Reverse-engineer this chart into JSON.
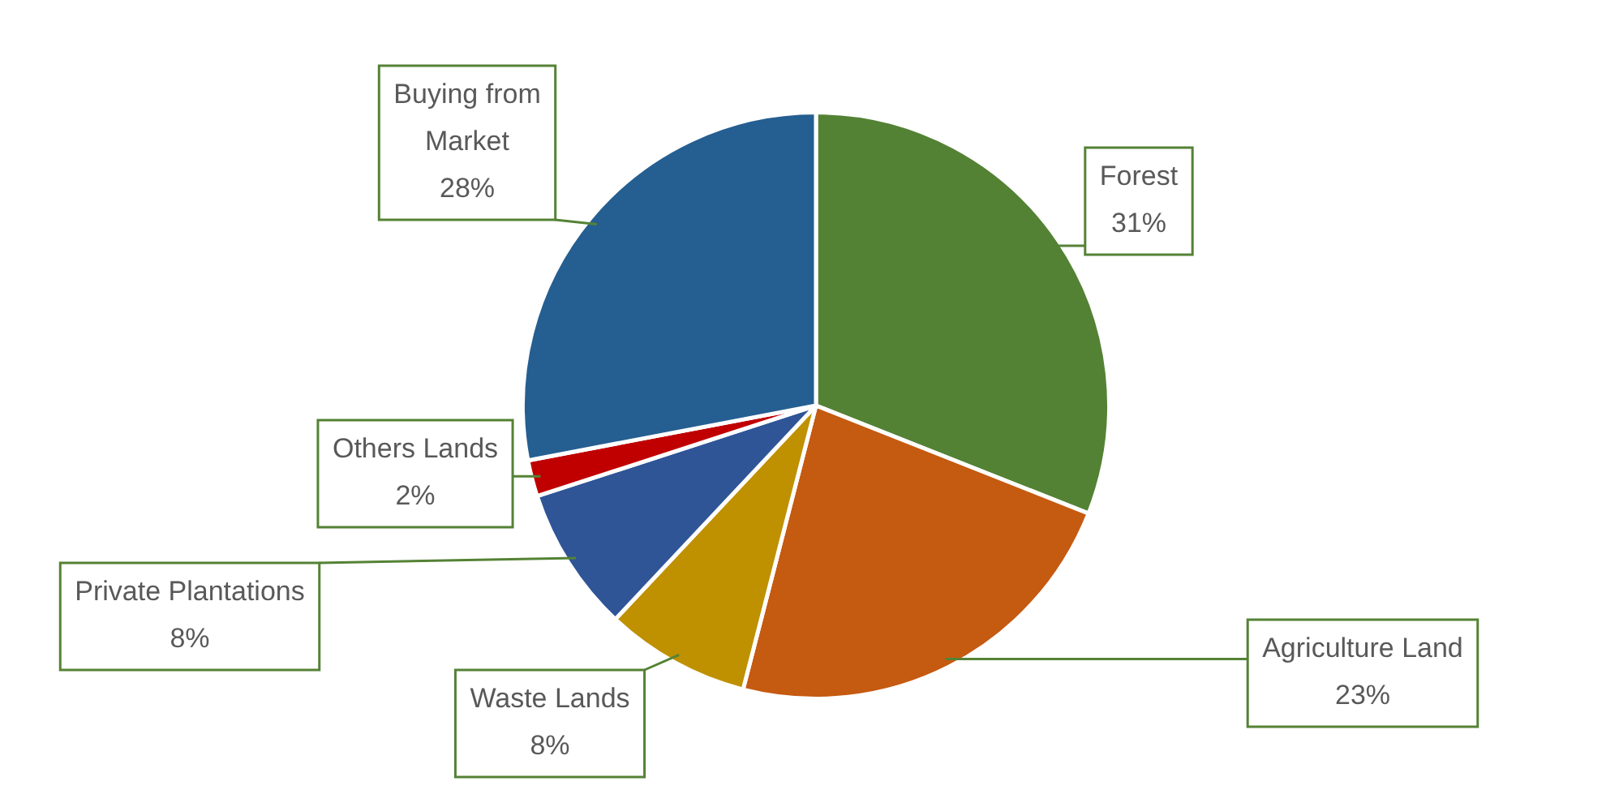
{
  "chart_data": {
    "type": "pie",
    "categories": [
      "Forest",
      "Agriculture Land",
      "Waste Lands",
      "Private Plantations",
      "Others Lands",
      "Buying from Market"
    ],
    "values": [
      31,
      23,
      8,
      8,
      2,
      28
    ],
    "colors": [
      "#548235",
      "#c55a11",
      "#bf9000",
      "#2f5597",
      "#c00000",
      "#255e91"
    ],
    "value_labels": [
      "31%",
      "23%",
      "8%",
      "8%",
      "2%",
      "28%"
    ]
  }
}
